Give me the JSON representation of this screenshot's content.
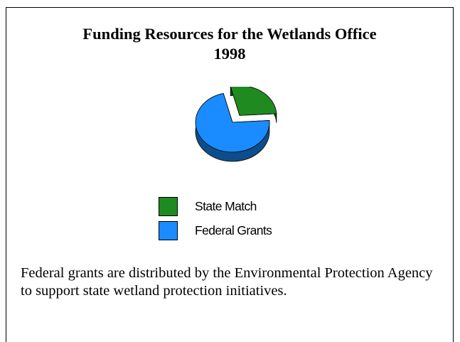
{
  "chart_data": {
    "type": "pie",
    "title": "Funding Resources for the Wetlands Office",
    "subtitle": "1998",
    "categories": [
      "State Match",
      "Federal Grants"
    ],
    "values": [
      28,
      72
    ],
    "exploded": [
      "State Match"
    ],
    "three_d": true,
    "colors": {
      "State Match": "#1f8a1f",
      "Federal Grants": "#1a8cff"
    },
    "legend_position": "bottom"
  },
  "caption": "Federal grants are distributed by the Environmental Protection Agency to support state wetland protection initiatives."
}
